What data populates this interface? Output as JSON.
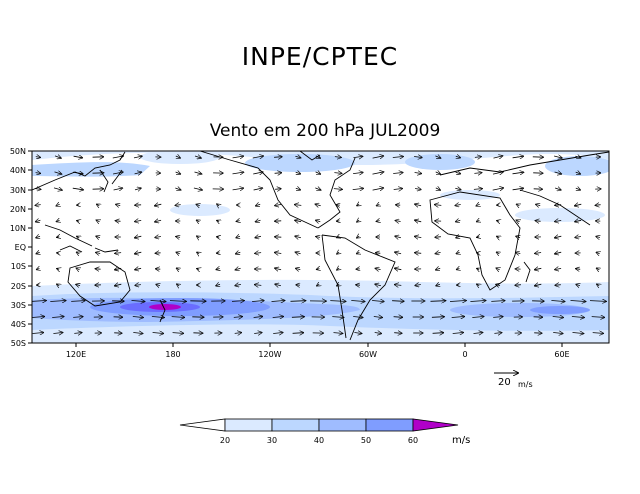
{
  "header": {
    "title": "INPE/CPTEC"
  },
  "map": {
    "title": "Vento em 200 hPa JUL2009",
    "variable": "Vento",
    "level": "200 hPa",
    "period": "JUL2009",
    "lat_labels": [
      "50N",
      "40N",
      "30N",
      "20N",
      "10N",
      "EQ",
      "10S",
      "20S",
      "30S",
      "40S",
      "50S"
    ],
    "lon_labels": [
      "120E",
      "180",
      "120W",
      "60W",
      "0",
      "60E"
    ],
    "reference_vector": {
      "value": "20",
      "unit": "m/s"
    }
  },
  "colorbar": {
    "ticks": [
      "20",
      "30",
      "40",
      "50",
      "60"
    ],
    "unit": "m/s",
    "colors": [
      "#ffffff",
      "#dbeaff",
      "#bcd7ff",
      "#9fbcff",
      "#7f9dff",
      "#6a6dff",
      "#b000c8"
    ]
  }
}
